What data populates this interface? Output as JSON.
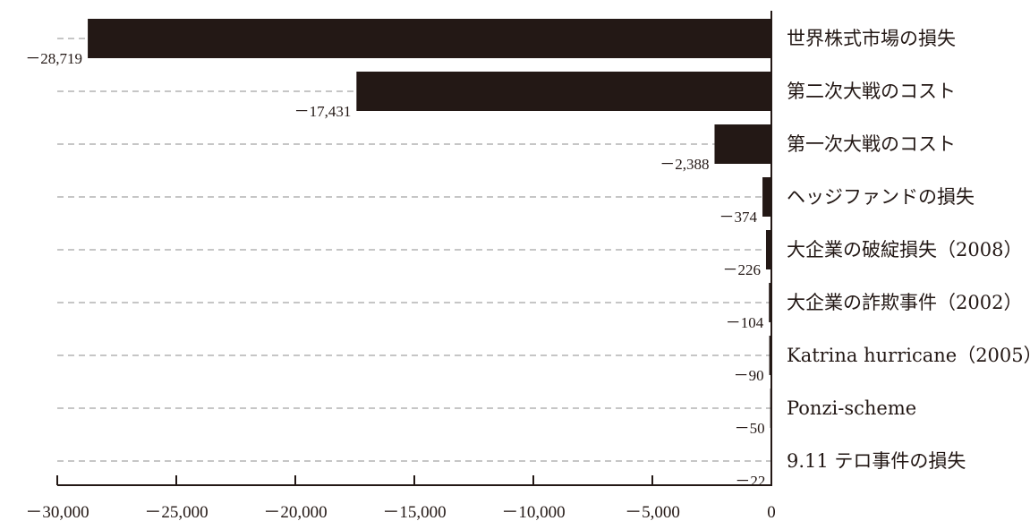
{
  "chart_data": {
    "type": "bar",
    "orientation": "horizontal",
    "title": "",
    "xlabel": "",
    "ylabel": "",
    "xlim": [
      -30000,
      0
    ],
    "grid": true,
    "legend": "none",
    "bar_color": "#231815",
    "categories": [
      "世界株式市場の損失",
      "第二次大戦のコスト",
      "第一次大戦のコスト",
      "ヘッジファンドの損失",
      "大企業の破綻損失（2008）",
      "大企業の詐欺事件（2002）",
      "Katrina hurricane（2005）",
      "Ponzi-scheme",
      "9.11 テロ事件の損失"
    ],
    "values": [
      -28719,
      -17431,
      -2388,
      -374,
      -226,
      -104,
      -90,
      -50,
      -22
    ],
    "value_labels": [
      "－28,719",
      "－17,431",
      "－2,388",
      "－374",
      "－226",
      "－104",
      "－90",
      "－50",
      "－22"
    ],
    "x_ticks": [
      -30000,
      -25000,
      -20000,
      -15000,
      -10000,
      -5000,
      0
    ],
    "x_tick_labels": [
      "－30,000",
      "－25,000",
      "－20,000",
      "－15,000",
      "－10,000",
      "－5,000",
      "0"
    ]
  }
}
